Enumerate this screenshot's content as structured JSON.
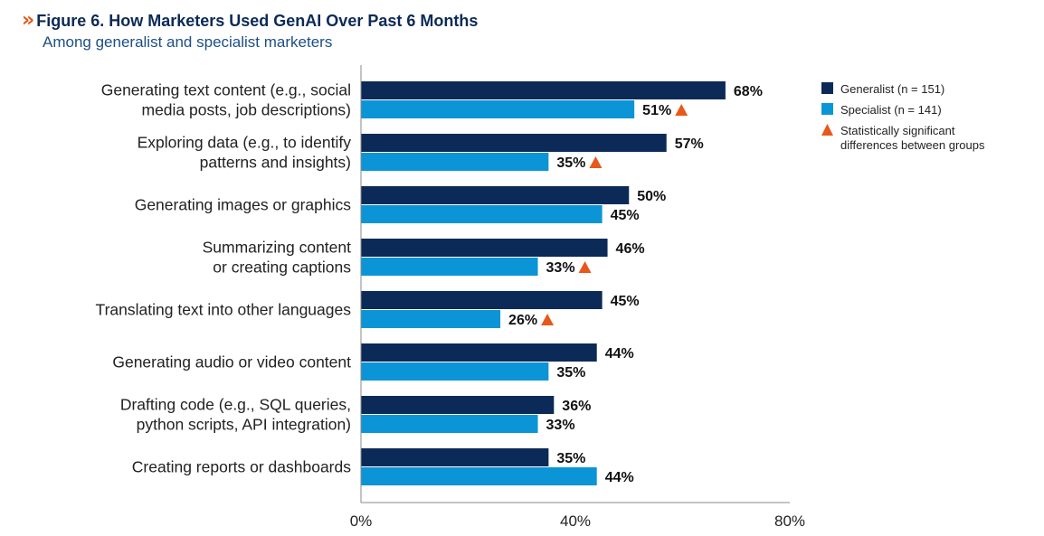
{
  "header": {
    "chevron": "»",
    "title": "Figure 6. How Marketers Used GenAI Over Past 6 Months",
    "subtitle": "Among generalist and specialist marketers"
  },
  "colors": {
    "generalist": "#0c2a57",
    "specialist": "#0b95d6",
    "significance": "#e8581b",
    "axis": "#8a8a8a"
  },
  "legend": {
    "items": [
      {
        "label": "Generalist (n = 151)",
        "marker": "square",
        "color": "#0c2a57"
      },
      {
        "label": "Specialist (n = 141)",
        "marker": "square",
        "color": "#0b95d6"
      },
      {
        "label": "Statistically significant\ndifferences between groups",
        "marker": "triangle",
        "color": "#e8581b"
      }
    ]
  },
  "chart_data": {
    "type": "bar",
    "orientation": "horizontal",
    "title": "Figure 6. How Marketers Used GenAI Over Past 6 Months",
    "subtitle": "Among generalist and specialist marketers",
    "categories": [
      "Generating text content (e.g., social\nmedia posts, job descriptions)",
      "Exploring data (e.g., to identify\npatterns and insights)",
      "Generating images or graphics",
      "Summarizing content\nor creating captions",
      "Translating text into other languages",
      "Generating audio or video content",
      "Drafting code (e.g., SQL queries,\npython scripts, API integration)",
      "Creating reports or dashboards"
    ],
    "series": [
      {
        "name": "Generalist (n = 151)",
        "values": [
          68,
          57,
          50,
          46,
          45,
          44,
          36,
          35
        ]
      },
      {
        "name": "Specialist (n = 141)",
        "values": [
          51,
          35,
          45,
          33,
          26,
          35,
          33,
          44
        ]
      }
    ],
    "value_labels": {
      "generalist": [
        "68%",
        "57%",
        "50%",
        "46%",
        "45%",
        "44%",
        "36%",
        "35%"
      ],
      "specialist": [
        "51%",
        "35%",
        "45%",
        "33%",
        "26%",
        "35%",
        "33%",
        "44%"
      ]
    },
    "significant": [
      true,
      true,
      false,
      true,
      true,
      false,
      false,
      false
    ],
    "xlim": [
      0,
      80
    ],
    "xticks": [
      0,
      40,
      80
    ],
    "xtick_labels": [
      "0%",
      "40%",
      "80%"
    ],
    "grid": false,
    "legend_position": "top-right"
  }
}
